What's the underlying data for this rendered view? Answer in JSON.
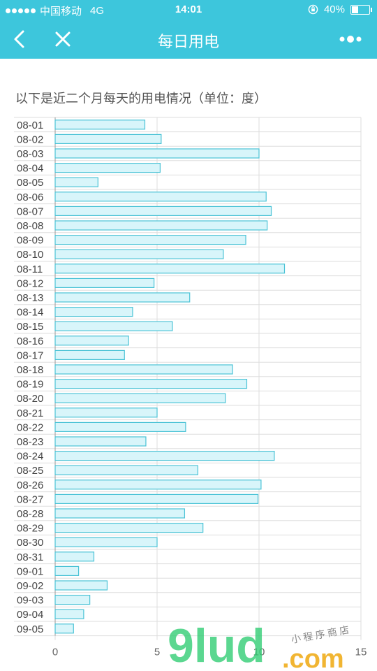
{
  "status_bar": {
    "carrier": "中国移动",
    "network": "4G",
    "time": "14:01",
    "battery_level": "40%",
    "battery_fraction": 0.4
  },
  "nav": {
    "title": "每日用电",
    "back_icon": "chevron-left-icon",
    "close_icon": "close-icon",
    "more_icon": "more-dots-icon"
  },
  "colors": {
    "accent": "#3dc6dc",
    "bar_fill": "#d8f5fa",
    "bar_stroke": "#4cc3d6",
    "grid": "#dddddd"
  },
  "chart_data": {
    "type": "bar",
    "orientation": "horizontal",
    "title": "以下是近二个月每天的用电情况（单位：度）",
    "categories": [
      "08-01",
      "08-02",
      "08-03",
      "08-04",
      "08-05",
      "08-06",
      "08-07",
      "08-08",
      "08-09",
      "08-10",
      "08-11",
      "08-12",
      "08-13",
      "08-14",
      "08-15",
      "08-16",
      "08-17",
      "08-18",
      "08-19",
      "08-20",
      "08-21",
      "08-22",
      "08-23",
      "08-24",
      "08-25",
      "08-26",
      "08-27",
      "08-28",
      "08-29",
      "08-30",
      "08-31",
      "09-01",
      "09-02",
      "09-03",
      "09-04",
      "09-05"
    ],
    "values": [
      4.4,
      5.2,
      10.0,
      5.15,
      2.1,
      10.35,
      10.6,
      10.4,
      9.35,
      8.25,
      11.25,
      4.85,
      6.6,
      3.8,
      5.75,
      3.6,
      3.4,
      8.7,
      9.4,
      8.35,
      5.0,
      6.4,
      4.45,
      10.75,
      7.0,
      10.1,
      9.95,
      6.35,
      7.25,
      5.0,
      1.9,
      1.15,
      2.55,
      1.7,
      1.4,
      0.9
    ],
    "xticks": [
      "0",
      "5",
      "10",
      "15"
    ],
    "xlim": [
      0,
      15
    ],
    "grid": true,
    "legend": "none"
  },
  "watermark": {
    "text": "9lud",
    "suffix": ".com",
    "tagline": "小程序商店"
  }
}
